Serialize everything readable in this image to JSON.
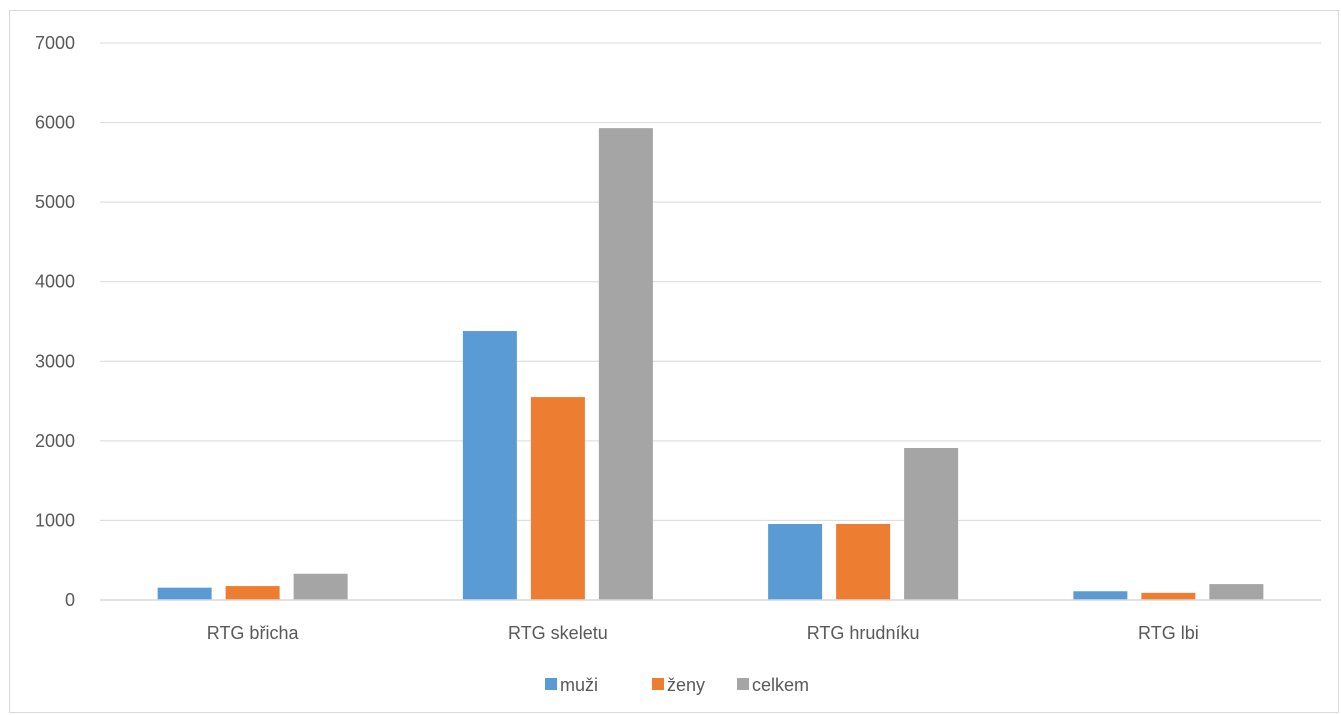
{
  "chart_data": {
    "type": "bar",
    "categories": [
      "RTG břicha",
      "RTG skeletu",
      "RTG hrudníku",
      "RTG lbi"
    ],
    "series": [
      {
        "name": "muži",
        "color": "#5b9bd5",
        "values": [
          155,
          3380,
          955,
          110
        ]
      },
      {
        "name": "ženy",
        "color": "#ed7d31",
        "values": [
          175,
          2550,
          955,
          90
        ]
      },
      {
        "name": "celkem",
        "color": "#a5a5a5",
        "values": [
          330,
          5930,
          1910,
          200
        ]
      }
    ],
    "title": "",
    "xlabel": "",
    "ylabel": "",
    "ylim": [
      0,
      7000
    ],
    "yticks": [
      0,
      1000,
      2000,
      3000,
      4000,
      5000,
      6000,
      7000
    ],
    "grid": true,
    "legend": "bottom"
  }
}
